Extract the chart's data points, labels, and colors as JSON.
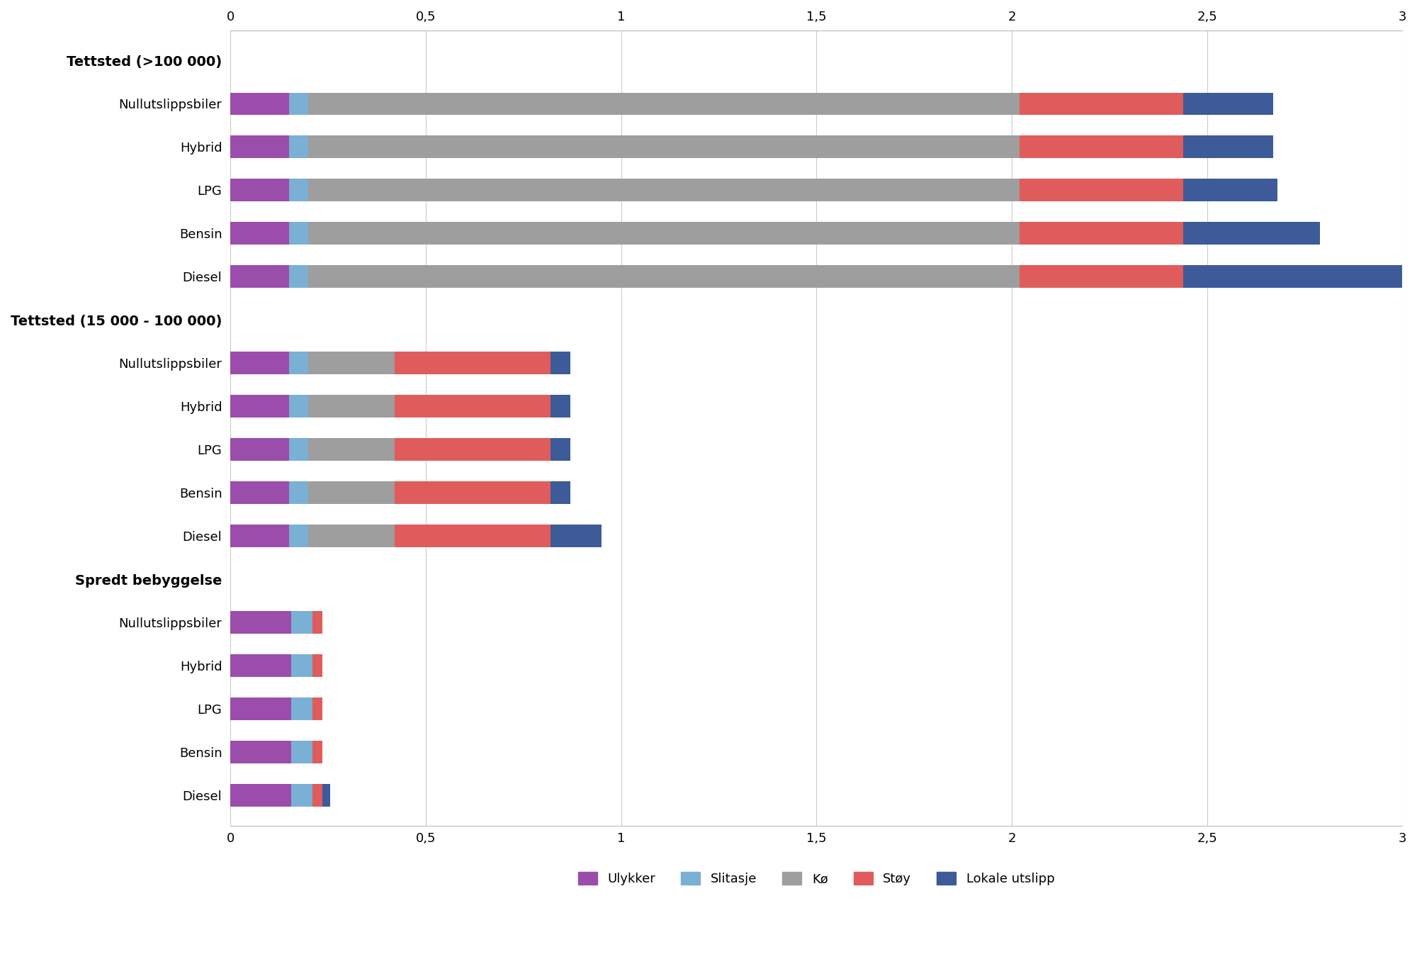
{
  "categories": [
    "Tettsted (>100 000)",
    "Nullutslippsbiler",
    "Hybrid",
    "LPG",
    "Bensin",
    "Diesel",
    "Tettsted (15 000 - 100 000)",
    "Nullutslippsbiler_2",
    "Hybrid_2",
    "LPG_2",
    "Bensin_2",
    "Diesel_2",
    "Spredt bebyggelse",
    "Nullutslippsbiler_3",
    "Hybrid_3",
    "LPG_3",
    "Bensin_3",
    "Diesel_3"
  ],
  "category_labels": [
    "Tettsted (>100 000)",
    "Nullutslippsbiler",
    "Hybrid",
    "LPG",
    "Bensin",
    "Diesel",
    "Tettsted (15 000 - 100 000)",
    "Nullutslippsbiler",
    "Hybrid",
    "LPG",
    "Bensin",
    "Diesel",
    "Spredt bebyggelse",
    "Nullutslippsbiler",
    "Hybrid",
    "LPG",
    "Bensin",
    "Diesel"
  ],
  "header_indices": [
    0,
    6,
    12
  ],
  "components": [
    "Ulykker",
    "Slitasje",
    "Kø",
    "Støy",
    "Lokale utslipp"
  ],
  "colors": [
    "#9b4dab",
    "#7ab0d4",
    "#9e9e9e",
    "#e05c5c",
    "#3d5a99"
  ],
  "data": [
    [
      0,
      0,
      0,
      0,
      0
    ],
    [
      0.15,
      0.05,
      1.82,
      0.42,
      0.23
    ],
    [
      0.15,
      0.05,
      1.82,
      0.42,
      0.23
    ],
    [
      0.15,
      0.05,
      1.82,
      0.42,
      0.24
    ],
    [
      0.15,
      0.05,
      1.82,
      0.42,
      0.35
    ],
    [
      0.15,
      0.05,
      1.82,
      0.42,
      0.57
    ],
    [
      0,
      0,
      0,
      0,
      0
    ],
    [
      0.15,
      0.05,
      0.22,
      0.4,
      0.05
    ],
    [
      0.15,
      0.05,
      0.22,
      0.4,
      0.05
    ],
    [
      0.15,
      0.05,
      0.22,
      0.4,
      0.05
    ],
    [
      0.15,
      0.05,
      0.22,
      0.4,
      0.05
    ],
    [
      0.15,
      0.05,
      0.22,
      0.4,
      0.13
    ],
    [
      0,
      0,
      0,
      0,
      0
    ],
    [
      0.155,
      0.055,
      0.0,
      0.025,
      0.0
    ],
    [
      0.155,
      0.055,
      0.0,
      0.025,
      0.0
    ],
    [
      0.155,
      0.055,
      0.0,
      0.025,
      0.0
    ],
    [
      0.155,
      0.055,
      0.0,
      0.025,
      0.0
    ],
    [
      0.155,
      0.055,
      0.0,
      0.025,
      0.02
    ]
  ],
  "xlim": [
    0,
    3
  ],
  "xticks": [
    0,
    0.5,
    1,
    1.5,
    2,
    2.5,
    3
  ],
  "xticklabels": [
    "0",
    "0,5",
    "1",
    "1,5",
    "2",
    "2,5",
    "3"
  ],
  "bar_height": 0.52,
  "header_fontsize": 14,
  "label_fontsize": 13,
  "tick_fontsize": 13,
  "legend_fontsize": 13,
  "background_color": "#ffffff",
  "spine_color": "#bbbbbb",
  "grid_color": "#cccccc"
}
